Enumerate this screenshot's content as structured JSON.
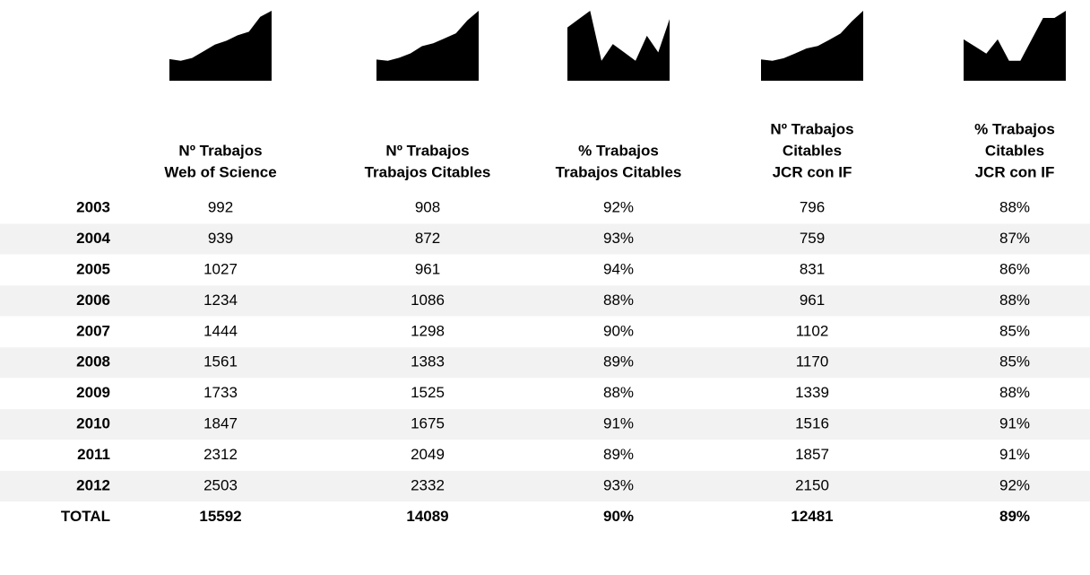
{
  "table": {
    "years": [
      "2003",
      "2004",
      "2005",
      "2006",
      "2007",
      "2008",
      "2009",
      "2010",
      "2011",
      "2012"
    ],
    "total_label": "TOTAL",
    "columns": [
      {
        "header": [
          "Nº Trabajos",
          "Web of Science"
        ],
        "values": [
          992,
          939,
          1027,
          1234,
          1444,
          1561,
          1733,
          1847,
          2312,
          2503
        ],
        "total": 15592
      },
      {
        "header": [
          "Nº Trabajos",
          "Trabajos Citables"
        ],
        "values": [
          908,
          872,
          961,
          1086,
          1298,
          1383,
          1525,
          1675,
          2049,
          2332
        ],
        "total": 14089
      },
      {
        "header": [
          "% Trabajos",
          "Trabajos Citables"
        ],
        "values": [
          92,
          93,
          94,
          88,
          90,
          89,
          88,
          91,
          89,
          93
        ],
        "value_labels": [
          "92%",
          "93%",
          "94%",
          "88%",
          "90%",
          "89%",
          "88%",
          "91%",
          "89%",
          "93%"
        ],
        "total": 90,
        "total_label": "90%"
      },
      {
        "header": [
          "Nº Trabajos",
          "Citables",
          "JCR con IF"
        ],
        "values": [
          796,
          759,
          831,
          961,
          1102,
          1170,
          1339,
          1516,
          1857,
          2150
        ],
        "total": 12481
      },
      {
        "header": [
          "% Trabajos",
          "Citables",
          "JCR con IF"
        ],
        "values": [
          88,
          87,
          86,
          88,
          85,
          85,
          88,
          91,
          91,
          92
        ],
        "value_labels": [
          "88%",
          "87%",
          "86%",
          "88%",
          "85%",
          "85%",
          "88%",
          "91%",
          "91%",
          "92%"
        ],
        "total": 89,
        "total_label": "89%"
      }
    ]
  }
}
